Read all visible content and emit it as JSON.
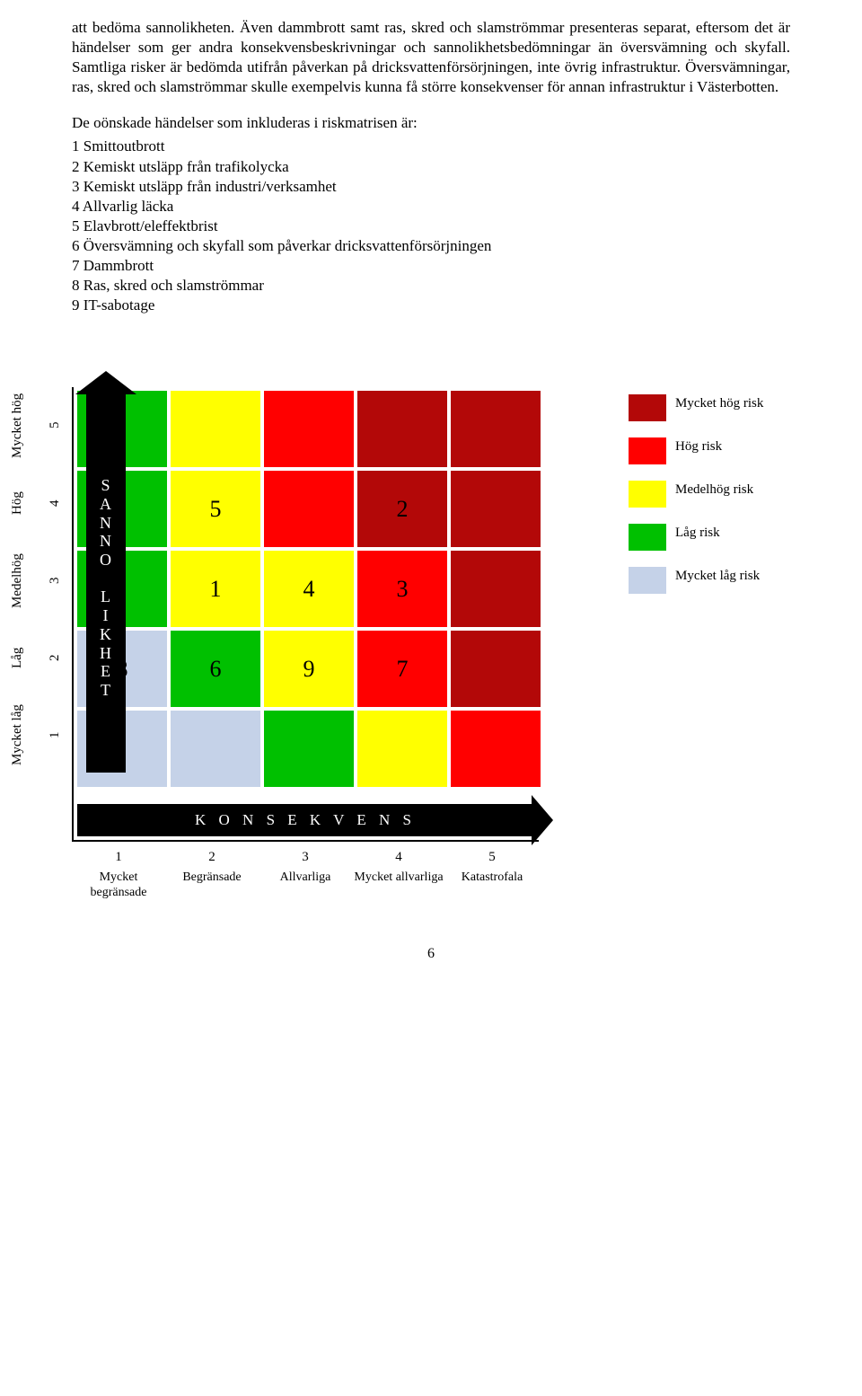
{
  "paragraphs": {
    "p1": "att bedöma sannolikheten. Även dammbrott samt ras, skred och slamströmmar presenteras separat, eftersom det är händelser som ger andra konsekvensbeskrivningar och sannolikhetsbedömningar än översvämning och skyfall. Samtliga risker är bedömda utifrån påverkan på dricksvattenförsörjningen, inte övrig infrastruktur. Översvämningar, ras, skred och slamströmmar skulle exempelvis kunna få större konsekvenser för annan infrastruktur i Västerbotten.",
    "p2": "De oönskade händelser som inkluderas i riskmatrisen är:"
  },
  "risk_list": [
    "1 Smittoutbrott",
    "2 Kemiskt utsläpp från trafikolycka",
    "3 Kemiskt utsläpp från industri/verksamhet",
    "4 Allvarlig läcka",
    "5 Elavbrott/eleffektbrist",
    "6 Översvämning och skyfall som påverkar dricksvattenförsörjningen",
    "7 Dammbrott",
    "8 Ras, skred och slamströmmar",
    "9 IT-sabotage"
  ],
  "matrix": {
    "colors": {
      "very_high": "#b30808",
      "high": "#ff0000",
      "medium": "#ffff00",
      "low": "#00c000",
      "very_low": "#c5d2e8"
    },
    "grid": [
      [
        "low",
        "medium",
        "high",
        "very_high",
        "very_high"
      ],
      [
        "low",
        "medium",
        "high",
        "very_high",
        "very_high"
      ],
      [
        "low",
        "medium",
        "medium",
        "high",
        "very_high"
      ],
      [
        "very_low",
        "low",
        "medium",
        "high",
        "very_high"
      ],
      [
        "very_low",
        "very_low",
        "low",
        "medium",
        "high"
      ]
    ],
    "cell_values": {
      "r4_c2": "5",
      "r4_c4": "2",
      "r3_c2": "1",
      "r3_c3": "4",
      "r3_c4": "3",
      "r2_c1": "8",
      "r2_c2": "6",
      "r2_c3": "9",
      "r2_c4": "7"
    },
    "y_axis": {
      "letters": "S\nA\nN\nN\nO\n\nL\nI\nK\nH\nE\nT",
      "labels": [
        "Mycket låg",
        "Låg",
        "Medelhög",
        "Hög",
        "Mycket hög"
      ],
      "nums": [
        "1",
        "2",
        "3",
        "4",
        "5"
      ]
    },
    "x_axis": {
      "text": "K O N S E K V E N S",
      "nums": [
        "1",
        "2",
        "3",
        "4",
        "5"
      ],
      "labels": [
        "Mycket begränsade",
        "Begränsade",
        "Allvarliga",
        "Mycket allvarliga",
        "Katastrofala"
      ]
    },
    "legend": [
      {
        "key": "very_high",
        "label": "Mycket hög risk"
      },
      {
        "key": "high",
        "label": "Hög risk"
      },
      {
        "key": "medium",
        "label": "Medelhög risk"
      },
      {
        "key": "low",
        "label": "Låg risk"
      },
      {
        "key": "very_low",
        "label": "Mycket låg risk"
      }
    ]
  },
  "page_number": "6"
}
